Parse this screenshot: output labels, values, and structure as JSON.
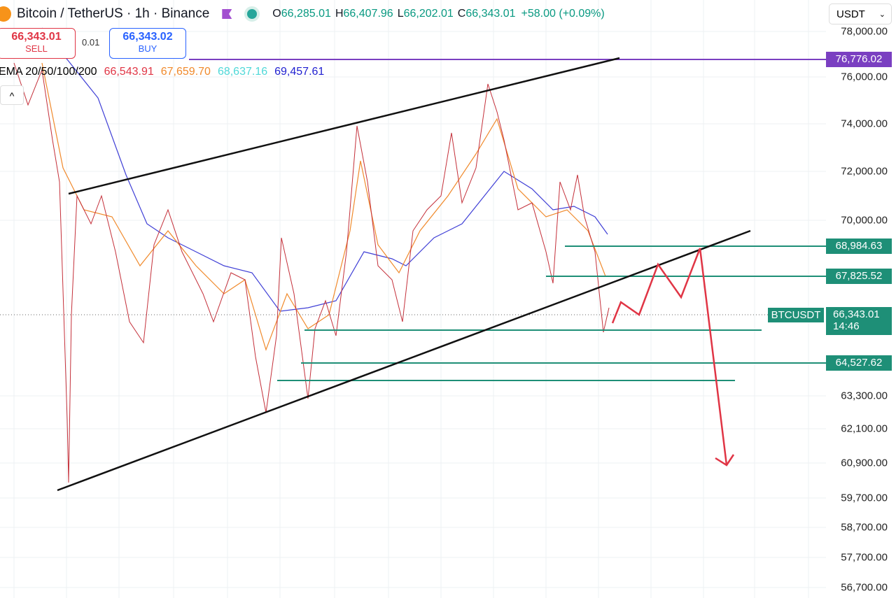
{
  "header": {
    "symbol": "Bitcoin / TetherUS · 1h · Binance",
    "ohlc": [
      {
        "key": "O",
        "value": "66,285.01"
      },
      {
        "key": "H",
        "value": "66,407.96"
      },
      {
        "key": "L",
        "value": "66,202.01"
      },
      {
        "key": "C",
        "value": "66,343.01"
      }
    ],
    "change": "+58.00 (+0.09%)",
    "currency": "USDT"
  },
  "trade": {
    "sell_price": "66,343.01",
    "sell_label": "SELL",
    "quantity": "0.01",
    "buy_price": "66,343.02",
    "buy_label": "BUY"
  },
  "indicator": {
    "name": "EMA 20/50/100/200",
    "values": [
      "66,543.91",
      "67,659.70",
      "68,637.16",
      "69,457.61"
    ]
  },
  "price_axis": [
    "78,000.00",
    "76,000.00",
    "74,000.00",
    "72,000.00",
    "70,000.00",
    "63,300.00",
    "62,100.00",
    "60,900.00",
    "59,700.00",
    "58,700.00",
    "57,700.00",
    "56,700.00"
  ],
  "price_tags": [
    "76,776.02",
    "68,984.63",
    "67,825.52",
    "64,527.62"
  ],
  "current": {
    "symbol": "BTCUSDT",
    "price": "66,343.01",
    "countdown": "14:46"
  }
}
